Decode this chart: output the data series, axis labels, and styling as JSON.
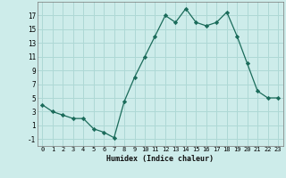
{
  "x": [
    0,
    1,
    2,
    3,
    4,
    5,
    6,
    7,
    8,
    9,
    10,
    11,
    12,
    13,
    14,
    15,
    16,
    17,
    18,
    19,
    20,
    21,
    22,
    23
  ],
  "y": [
    4,
    3,
    2.5,
    2,
    2,
    0.5,
    0,
    -0.8,
    4.5,
    8,
    11,
    14,
    17,
    16,
    18,
    16,
    15.5,
    16,
    17.5,
    14,
    10,
    6,
    5,
    5
  ],
  "line_color": "#1a6b5a",
  "marker": "D",
  "marker_size": 2.2,
  "bg_color": "#cdecea",
  "grid_color": "#aed8d5",
  "xlabel": "Humidex (Indice chaleur)",
  "xlim": [
    -0.5,
    23.5
  ],
  "ylim": [
    -2,
    19
  ],
  "yticks": [
    -1,
    1,
    3,
    5,
    7,
    9,
    11,
    13,
    15,
    17
  ],
  "xticks": [
    0,
    1,
    2,
    3,
    4,
    5,
    6,
    7,
    8,
    9,
    10,
    11,
    12,
    13,
    14,
    15,
    16,
    17,
    18,
    19,
    20,
    21,
    22,
    23
  ]
}
